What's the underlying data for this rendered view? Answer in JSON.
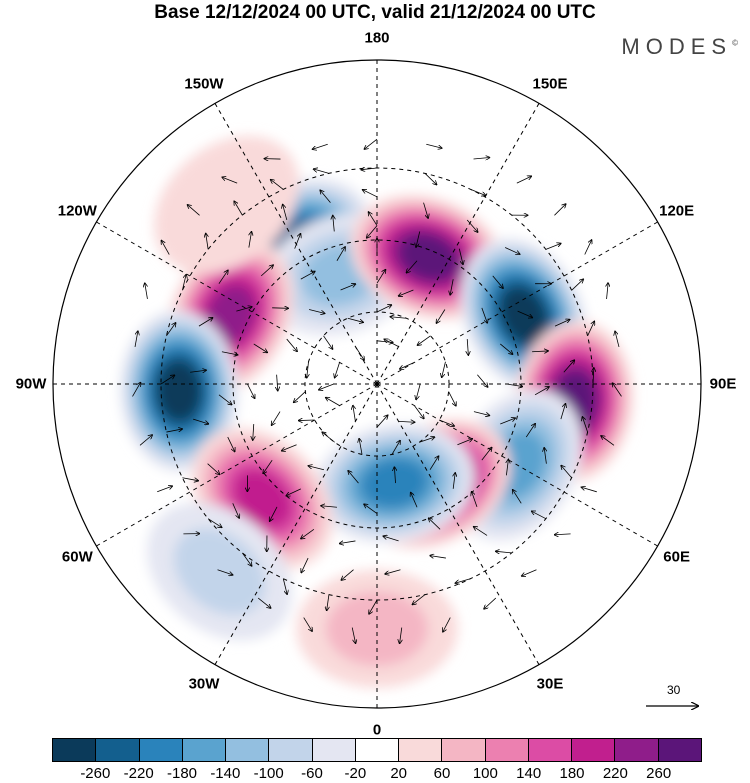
{
  "title": "Base 12/12/2024 00 UTC, valid 21/12/2024 00 UTC",
  "brand": {
    "name": "MODES",
    "mark": "©"
  },
  "longitude_labels": [
    {
      "text": "180",
      "deg": 180
    },
    {
      "text": "150E",
      "deg": 150
    },
    {
      "text": "120E",
      "deg": 120
    },
    {
      "text": "90E",
      "deg": 90
    },
    {
      "text": "60E",
      "deg": 60
    },
    {
      "text": "30E",
      "deg": 30
    },
    {
      "text": "0",
      "deg": 0
    },
    {
      "text": "30W",
      "deg": -30
    },
    {
      "text": "60W",
      "deg": -60
    },
    {
      "text": "90W",
      "deg": -90
    },
    {
      "text": "120W",
      "deg": -120
    },
    {
      "text": "150W",
      "deg": -150
    }
  ],
  "reference_vector": {
    "label": "30"
  },
  "colorbar": {
    "colors": [
      "#0b3a5a",
      "#135f8e",
      "#2a83bb",
      "#5aa3cf",
      "#93bfe0",
      "#c2d4ea",
      "#e4e6f2",
      "#ffffff",
      "#f9dada",
      "#f4b6c4",
      "#ec80b0",
      "#dc4ca5",
      "#c11f8e",
      "#8f1d8a",
      "#5b1579"
    ],
    "tick_labels": [
      "-260",
      "-220",
      "-180",
      "-140",
      "-100",
      "-60",
      "-20",
      "20",
      "60",
      "100",
      "140",
      "180",
      "220",
      "260"
    ]
  },
  "anomaly_centers": [
    {
      "sign": "neg",
      "level": 6,
      "lon": -150,
      "lat": 45
    },
    {
      "sign": "neg",
      "level": 3,
      "lon": -162,
      "lat": 58
    },
    {
      "sign": "pos",
      "level": 7,
      "lon": 158,
      "lat": 52
    },
    {
      "sign": "neg",
      "level": 7,
      "lon": 115,
      "lat": 45
    },
    {
      "sign": "pos",
      "level": 6,
      "lon": -115,
      "lat": 45
    },
    {
      "sign": "neg",
      "level": 7,
      "lon": -88,
      "lat": 35
    },
    {
      "sign": "pos",
      "level": 7,
      "lon": 85,
      "lat": 35
    },
    {
      "sign": "neg",
      "level": 4,
      "lon": 60,
      "lat": 45
    },
    {
      "sign": "pos",
      "level": 7,
      "lon": 30,
      "lat": 58
    },
    {
      "sign": "neg",
      "level": 5,
      "lon": 10,
      "lat": 62
    },
    {
      "sign": "pos",
      "level": 5,
      "lon": -45,
      "lat": 45
    },
    {
      "sign": "neg",
      "level": 2,
      "lon": -40,
      "lat": 22
    },
    {
      "sign": "pos",
      "level": 2,
      "lon": 0,
      "lat": 22
    },
    {
      "sign": "pos",
      "level": 1,
      "lon": -140,
      "lat": 25
    }
  ]
}
